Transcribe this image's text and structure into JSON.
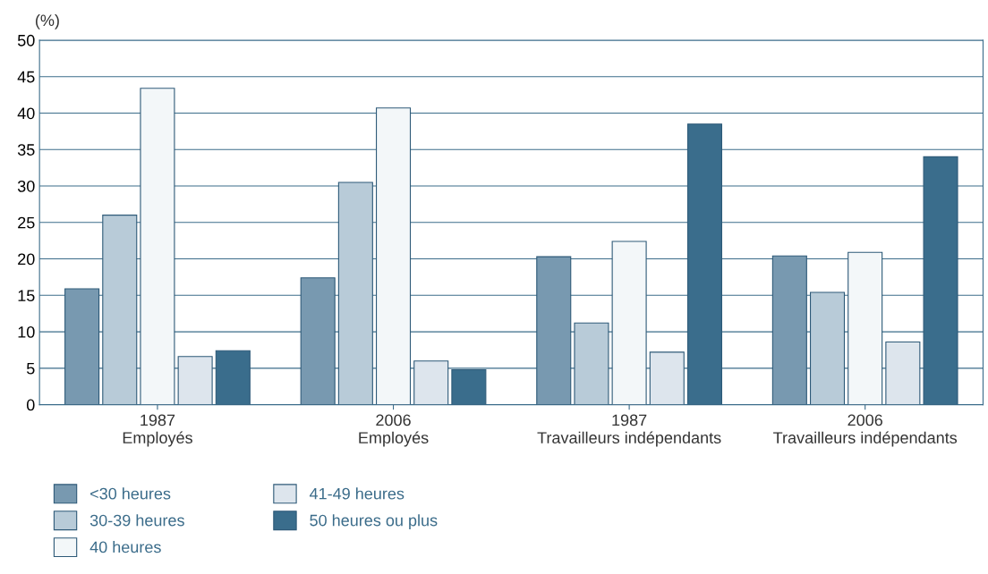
{
  "chart_data": {
    "type": "bar",
    "ylabel": "(%)",
    "categories": [
      "1987\nEmployés",
      "2006\nEmployés",
      "1987\nTravailleurs indépendants",
      "2006\nTravailleurs indépendants"
    ],
    "series": [
      {
        "name": "<30 heures",
        "color": "#7899b0",
        "values": [
          15.9,
          17.4,
          20.3,
          20.4
        ]
      },
      {
        "name": "30-39 heures",
        "color": "#b8cbd8",
        "values": [
          26.0,
          30.5,
          11.2,
          15.4
        ]
      },
      {
        "name": "40 heures",
        "color": "#f3f7f9",
        "values": [
          43.4,
          40.7,
          22.4,
          20.9
        ]
      },
      {
        "name": "41-49 heures",
        "color": "#dde5ed",
        "values": [
          6.6,
          6.0,
          7.2,
          8.6
        ]
      },
      {
        "name": "50 heures ou plus",
        "color": "#3a6d8c",
        "values": [
          7.4,
          4.8,
          38.5,
          34.0
        ]
      }
    ],
    "ylim": [
      0,
      50
    ],
    "yticks": [
      0,
      5,
      10,
      15,
      20,
      25,
      30,
      35,
      40,
      45,
      50
    ],
    "grid": "y",
    "legend": "bottom"
  }
}
